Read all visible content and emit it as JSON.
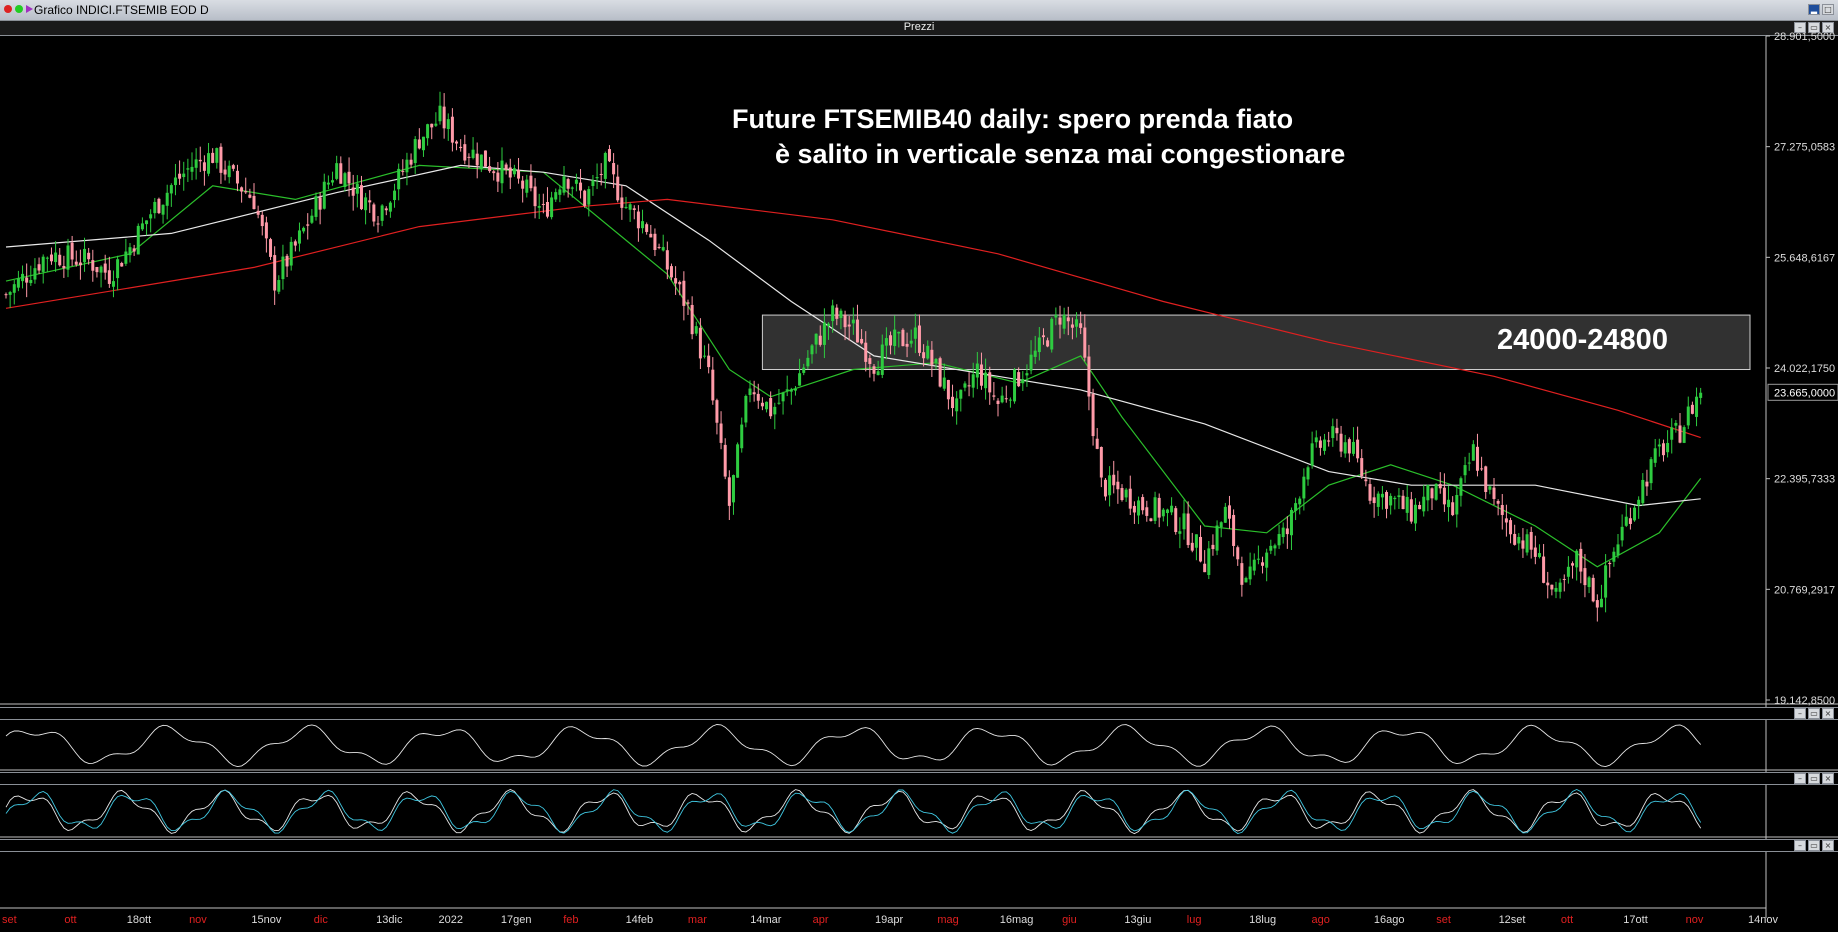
{
  "window": {
    "title": "Grafico INDICI.FTSEMIB EOD D",
    "price_panel_label": "Prezzi",
    "sub_panel_label": "..."
  },
  "annotation": {
    "line1": "Future FTSEMIB40 daily: spero prenda fiato",
    "line2": "è salito in verticale senza mai congestionare",
    "zone_label": "24000-24800"
  },
  "colors": {
    "background": "#000000",
    "bull": "#2ecc40",
    "bear": "#ff9aa8",
    "ma_short": "#2bbf2b",
    "ma_mid": "#e8e8e8",
    "ma_long": "#e02020",
    "zone_fill": "#3a3a3a",
    "osc_line": "#e6e6e6",
    "stoch_k": "#e6e6e6",
    "stoch_d": "#3fc6e0",
    "accent_month": "#e02020"
  },
  "chart_data": {
    "type": "candlestick",
    "y_axis_ticks": [
      "28.901,5000",
      "27.275,0583",
      "25.648,6167",
      "24.022,1750",
      "22.395,7333",
      "20.769,2917",
      "19.142,8500"
    ],
    "ylim": [
      19142.85,
      28901.5
    ],
    "last_price_label": "23.665,0000",
    "zone": {
      "low": 24000,
      "high": 24800
    },
    "x_axis_labels": [
      {
        "text": "set",
        "red": true
      },
      {
        "text": "ott",
        "red": true
      },
      {
        "text": "18ott",
        "red": false
      },
      {
        "text": "nov",
        "red": true
      },
      {
        "text": "15nov",
        "red": false
      },
      {
        "text": "dic",
        "red": true
      },
      {
        "text": "13dic",
        "red": false
      },
      {
        "text": "2022",
        "red": false
      },
      {
        "text": "17gen",
        "red": false
      },
      {
        "text": "feb",
        "red": true
      },
      {
        "text": "14feb",
        "red": false
      },
      {
        "text": "mar",
        "red": true
      },
      {
        "text": "14mar",
        "red": false
      },
      {
        "text": "apr",
        "red": true
      },
      {
        "text": "19apr",
        "red": false
      },
      {
        "text": "mag",
        "red": true
      },
      {
        "text": "16mag",
        "red": false
      },
      {
        "text": "giu",
        "red": true
      },
      {
        "text": "13giu",
        "red": false
      },
      {
        "text": "lug",
        "red": true
      },
      {
        "text": "18lug",
        "red": false
      },
      {
        "text": "ago",
        "red": true
      },
      {
        "text": "16ago",
        "red": false
      },
      {
        "text": "set",
        "red": true
      },
      {
        "text": "12set",
        "red": false
      },
      {
        "text": "ott",
        "red": true
      },
      {
        "text": "17ott",
        "red": false
      },
      {
        "text": "nov",
        "red": true
      },
      {
        "text": "14nov",
        "red": false
      }
    ],
    "close_path": [
      [
        0,
        25100
      ],
      [
        10,
        25700
      ],
      [
        20,
        25600
      ],
      [
        25,
        25400
      ],
      [
        30,
        25800
      ],
      [
        35,
        26300
      ],
      [
        40,
        26700
      ],
      [
        45,
        27000
      ],
      [
        50,
        27150
      ],
      [
        55,
        26800
      ],
      [
        60,
        26500
      ],
      [
        65,
        25300
      ],
      [
        70,
        25800
      ],
      [
        75,
        26400
      ],
      [
        80,
        27000
      ],
      [
        85,
        26600
      ],
      [
        90,
        26300
      ],
      [
        95,
        26800
      ],
      [
        100,
        27400
      ],
      [
        105,
        27700
      ],
      [
        110,
        27300
      ],
      [
        115,
        27100
      ],
      [
        120,
        26900
      ],
      [
        125,
        26700
      ],
      [
        130,
        26300
      ],
      [
        135,
        26900
      ],
      [
        140,
        26500
      ],
      [
        145,
        27000
      ],
      [
        150,
        26400
      ],
      [
        155,
        26100
      ],
      [
        160,
        25500
      ],
      [
        165,
        24900
      ],
      [
        170,
        23900
      ],
      [
        175,
        22000
      ],
      [
        180,
        23800
      ],
      [
        185,
        23400
      ],
      [
        190,
        23700
      ],
      [
        195,
        24300
      ],
      [
        200,
        24800
      ],
      [
        205,
        24600
      ],
      [
        210,
        24100
      ],
      [
        215,
        24400
      ],
      [
        220,
        24500
      ],
      [
        225,
        24000
      ],
      [
        230,
        23400
      ],
      [
        235,
        24000
      ],
      [
        240,
        23500
      ],
      [
        245,
        23900
      ],
      [
        250,
        24300
      ],
      [
        255,
        24800
      ],
      [
        260,
        24500
      ],
      [
        265,
        22300
      ],
      [
        270,
        22200
      ],
      [
        275,
        22000
      ],
      [
        280,
        21900
      ],
      [
        285,
        21700
      ],
      [
        290,
        21200
      ],
      [
        295,
        21900
      ],
      [
        300,
        20800
      ],
      [
        305,
        21400
      ],
      [
        310,
        21600
      ],
      [
        315,
        22700
      ],
      [
        320,
        23000
      ],
      [
        325,
        22900
      ],
      [
        330,
        22200
      ],
      [
        335,
        22100
      ],
      [
        340,
        21900
      ],
      [
        345,
        22200
      ],
      [
        350,
        21900
      ],
      [
        355,
        22800
      ],
      [
        360,
        22000
      ],
      [
        365,
        21600
      ],
      [
        370,
        21300
      ],
      [
        375,
        20600
      ],
      [
        380,
        21200
      ],
      [
        385,
        20600
      ],
      [
        390,
        21500
      ],
      [
        395,
        22200
      ],
      [
        400,
        22800
      ],
      [
        405,
        23100
      ],
      [
        410,
        23700
      ]
    ],
    "moving_averages": [
      {
        "name": "short",
        "points": [
          [
            0,
            25300
          ],
          [
            30,
            25700
          ],
          [
            50,
            26700
          ],
          [
            70,
            26500
          ],
          [
            100,
            27000
          ],
          [
            130,
            26900
          ],
          [
            160,
            25400
          ],
          [
            175,
            24000
          ],
          [
            185,
            23600
          ],
          [
            205,
            24000
          ],
          [
            225,
            24100
          ],
          [
            245,
            23800
          ],
          [
            260,
            24200
          ],
          [
            270,
            23300
          ],
          [
            290,
            21700
          ],
          [
            305,
            21600
          ],
          [
            320,
            22300
          ],
          [
            335,
            22600
          ],
          [
            350,
            22300
          ],
          [
            370,
            21700
          ],
          [
            385,
            21100
          ],
          [
            400,
            21600
          ],
          [
            410,
            22400
          ]
        ]
      },
      {
        "name": "mid",
        "points": [
          [
            0,
            25800
          ],
          [
            40,
            26000
          ],
          [
            80,
            26600
          ],
          [
            110,
            27000
          ],
          [
            130,
            26900
          ],
          [
            150,
            26700
          ],
          [
            170,
            25900
          ],
          [
            190,
            25000
          ],
          [
            210,
            24200
          ],
          [
            240,
            23900
          ],
          [
            260,
            23700
          ],
          [
            290,
            23200
          ],
          [
            320,
            22500
          ],
          [
            340,
            22300
          ],
          [
            370,
            22300
          ],
          [
            395,
            22000
          ],
          [
            410,
            22100
          ]
        ]
      },
      {
        "name": "long",
        "points": [
          [
            0,
            24900
          ],
          [
            60,
            25500
          ],
          [
            100,
            26100
          ],
          [
            140,
            26400
          ],
          [
            160,
            26500
          ],
          [
            200,
            26200
          ],
          [
            240,
            25700
          ],
          [
            280,
            25000
          ],
          [
            320,
            24400
          ],
          [
            360,
            23900
          ],
          [
            390,
            23400
          ],
          [
            410,
            23000
          ]
        ]
      }
    ]
  }
}
